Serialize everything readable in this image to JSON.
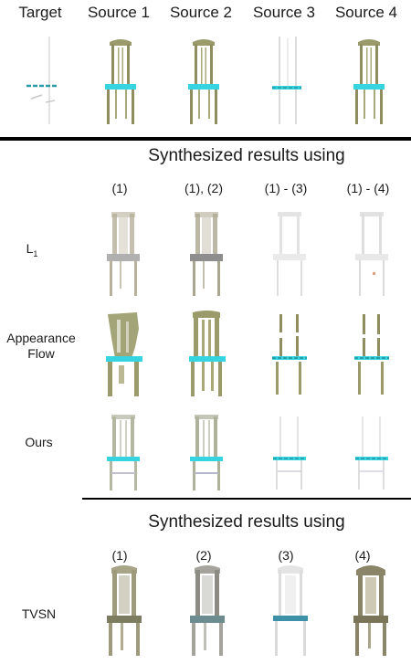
{
  "header": {
    "columns": [
      "Target",
      "Source 1",
      "Source 2",
      "Source 3",
      "Source 4"
    ]
  },
  "section1": {
    "title": "Synthesized results using",
    "subheads": [
      "(1)",
      "(1), (2)",
      "(1) - (3)",
      "(1) - (4)"
    ],
    "rows": [
      {
        "label": "L",
        "label_sub": "1"
      },
      {
        "label_line1": "Appearance",
        "label_line2": "Flow"
      },
      {
        "label": "Ours"
      }
    ]
  },
  "section2": {
    "title": "Synthesized results using",
    "subheads": [
      "(1)",
      "(2)",
      "(3)",
      "(4)"
    ],
    "row_label": "TVSN"
  },
  "colors": {
    "seat_cyan": "#36d4e0",
    "chair_olive": "#9a9a6a",
    "chair_grey": "#b9b9b4",
    "rule": "#000000"
  },
  "icons": [
    "chair-image"
  ]
}
